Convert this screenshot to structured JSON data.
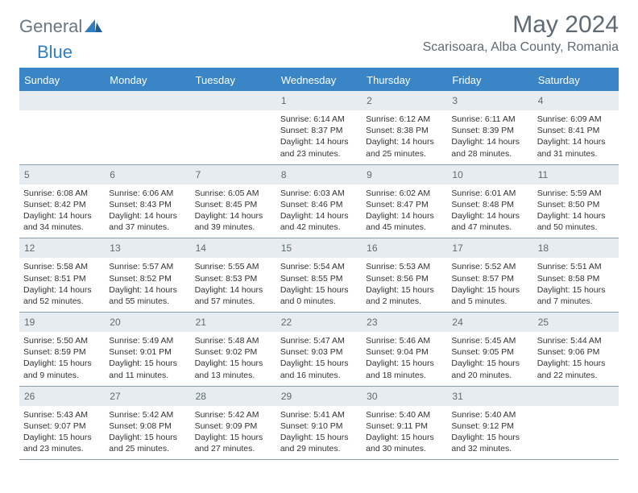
{
  "brand": {
    "part1": "General",
    "part2": "Blue"
  },
  "title": "May 2024",
  "location": "Scarisoara, Alba County, Romania",
  "colors": {
    "header_bar": "#3a85c5",
    "daynum_bg": "#e6ecef",
    "text_main": "#323232",
    "text_muted": "#5f6a72",
    "row_border": "#8aa0b0"
  },
  "weekdays": [
    "Sunday",
    "Monday",
    "Tuesday",
    "Wednesday",
    "Thursday",
    "Friday",
    "Saturday"
  ],
  "weeks": [
    [
      {
        "n": "",
        "sr": "",
        "ss": "",
        "dl": ""
      },
      {
        "n": "",
        "sr": "",
        "ss": "",
        "dl": ""
      },
      {
        "n": "",
        "sr": "",
        "ss": "",
        "dl": ""
      },
      {
        "n": "1",
        "sr": "6:14 AM",
        "ss": "8:37 PM",
        "dl": "14 hours and 23 minutes."
      },
      {
        "n": "2",
        "sr": "6:12 AM",
        "ss": "8:38 PM",
        "dl": "14 hours and 25 minutes."
      },
      {
        "n": "3",
        "sr": "6:11 AM",
        "ss": "8:39 PM",
        "dl": "14 hours and 28 minutes."
      },
      {
        "n": "4",
        "sr": "6:09 AM",
        "ss": "8:41 PM",
        "dl": "14 hours and 31 minutes."
      }
    ],
    [
      {
        "n": "5",
        "sr": "6:08 AM",
        "ss": "8:42 PM",
        "dl": "14 hours and 34 minutes."
      },
      {
        "n": "6",
        "sr": "6:06 AM",
        "ss": "8:43 PM",
        "dl": "14 hours and 37 minutes."
      },
      {
        "n": "7",
        "sr": "6:05 AM",
        "ss": "8:45 PM",
        "dl": "14 hours and 39 minutes."
      },
      {
        "n": "8",
        "sr": "6:03 AM",
        "ss": "8:46 PM",
        "dl": "14 hours and 42 minutes."
      },
      {
        "n": "9",
        "sr": "6:02 AM",
        "ss": "8:47 PM",
        "dl": "14 hours and 45 minutes."
      },
      {
        "n": "10",
        "sr": "6:01 AM",
        "ss": "8:48 PM",
        "dl": "14 hours and 47 minutes."
      },
      {
        "n": "11",
        "sr": "5:59 AM",
        "ss": "8:50 PM",
        "dl": "14 hours and 50 minutes."
      }
    ],
    [
      {
        "n": "12",
        "sr": "5:58 AM",
        "ss": "8:51 PM",
        "dl": "14 hours and 52 minutes."
      },
      {
        "n": "13",
        "sr": "5:57 AM",
        "ss": "8:52 PM",
        "dl": "14 hours and 55 minutes."
      },
      {
        "n": "14",
        "sr": "5:55 AM",
        "ss": "8:53 PM",
        "dl": "14 hours and 57 minutes."
      },
      {
        "n": "15",
        "sr": "5:54 AM",
        "ss": "8:55 PM",
        "dl": "15 hours and 0 minutes."
      },
      {
        "n": "16",
        "sr": "5:53 AM",
        "ss": "8:56 PM",
        "dl": "15 hours and 2 minutes."
      },
      {
        "n": "17",
        "sr": "5:52 AM",
        "ss": "8:57 PM",
        "dl": "15 hours and 5 minutes."
      },
      {
        "n": "18",
        "sr": "5:51 AM",
        "ss": "8:58 PM",
        "dl": "15 hours and 7 minutes."
      }
    ],
    [
      {
        "n": "19",
        "sr": "5:50 AM",
        "ss": "8:59 PM",
        "dl": "15 hours and 9 minutes."
      },
      {
        "n": "20",
        "sr": "5:49 AM",
        "ss": "9:01 PM",
        "dl": "15 hours and 11 minutes."
      },
      {
        "n": "21",
        "sr": "5:48 AM",
        "ss": "9:02 PM",
        "dl": "15 hours and 13 minutes."
      },
      {
        "n": "22",
        "sr": "5:47 AM",
        "ss": "9:03 PM",
        "dl": "15 hours and 16 minutes."
      },
      {
        "n": "23",
        "sr": "5:46 AM",
        "ss": "9:04 PM",
        "dl": "15 hours and 18 minutes."
      },
      {
        "n": "24",
        "sr": "5:45 AM",
        "ss": "9:05 PM",
        "dl": "15 hours and 20 minutes."
      },
      {
        "n": "25",
        "sr": "5:44 AM",
        "ss": "9:06 PM",
        "dl": "15 hours and 22 minutes."
      }
    ],
    [
      {
        "n": "26",
        "sr": "5:43 AM",
        "ss": "9:07 PM",
        "dl": "15 hours and 23 minutes."
      },
      {
        "n": "27",
        "sr": "5:42 AM",
        "ss": "9:08 PM",
        "dl": "15 hours and 25 minutes."
      },
      {
        "n": "28",
        "sr": "5:42 AM",
        "ss": "9:09 PM",
        "dl": "15 hours and 27 minutes."
      },
      {
        "n": "29",
        "sr": "5:41 AM",
        "ss": "9:10 PM",
        "dl": "15 hours and 29 minutes."
      },
      {
        "n": "30",
        "sr": "5:40 AM",
        "ss": "9:11 PM",
        "dl": "15 hours and 30 minutes."
      },
      {
        "n": "31",
        "sr": "5:40 AM",
        "ss": "9:12 PM",
        "dl": "15 hours and 32 minutes."
      },
      {
        "n": "",
        "sr": "",
        "ss": "",
        "dl": ""
      }
    ]
  ],
  "labels": {
    "sunrise": "Sunrise: ",
    "sunset": "Sunset: ",
    "daylight": "Daylight: "
  }
}
